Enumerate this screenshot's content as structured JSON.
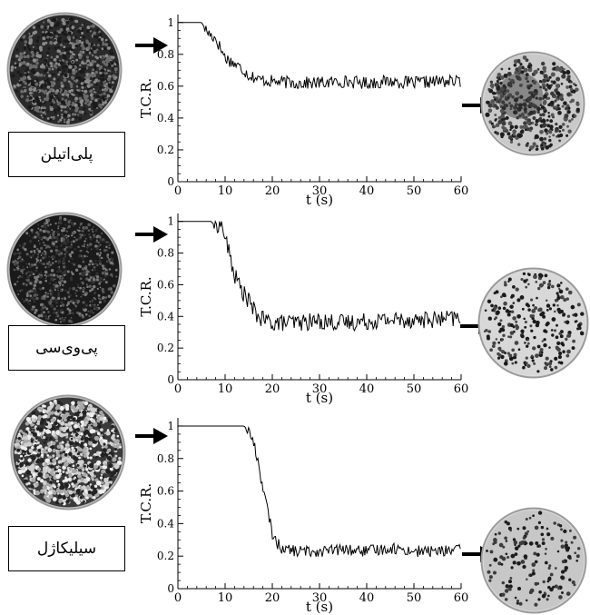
{
  "colors": {
    "line": "#000000",
    "background": "#ffffff",
    "dish_rim": "#8a8a8a"
  },
  "icons": {
    "arrow": "right-arrow-icon"
  },
  "chart_data": [
    {
      "type": "line",
      "material_label": "پلی‌اتیلن",
      "xlabel": "t (s)",
      "ylabel": "T.C.R.",
      "xlim": [
        0,
        60
      ],
      "ylim": [
        0,
        1.05
      ],
      "xticks": [
        "0",
        "10",
        "20",
        "30",
        "40",
        "50",
        "60"
      ],
      "yticks": [
        "0",
        "0.2",
        "0.4",
        "0.6",
        "0.8",
        "1"
      ],
      "series": [
        {
          "values": [
            [
              0,
              1.0
            ],
            [
              3,
              1.0
            ],
            [
              5,
              1.0
            ],
            [
              6,
              0.95
            ],
            [
              7,
              0.92
            ],
            [
              8,
              0.9
            ],
            [
              9,
              0.84
            ],
            [
              10,
              0.78
            ],
            [
              11,
              0.76
            ],
            [
              12,
              0.74
            ],
            [
              13,
              0.72
            ],
            [
              14,
              0.7
            ],
            [
              15,
              0.67
            ],
            [
              16,
              0.66
            ],
            [
              17,
              0.64
            ],
            [
              18,
              0.64
            ],
            [
              20,
              0.63
            ],
            [
              25,
              0.62
            ],
            [
              30,
              0.62
            ],
            [
              35,
              0.63
            ],
            [
              40,
              0.62
            ],
            [
              45,
              0.63
            ],
            [
              50,
              0.62
            ],
            [
              55,
              0.63
            ],
            [
              60,
              0.63
            ]
          ],
          "noise": 0.04
        }
      ]
    },
    {
      "type": "line",
      "material_label": "پی‌وی‌سی",
      "xlabel": "t (s)",
      "ylabel": "T.C.R.",
      "xlim": [
        0,
        60
      ],
      "ylim": [
        0,
        1.05
      ],
      "xticks": [
        "0",
        "10",
        "20",
        "30",
        "40",
        "50",
        "60"
      ],
      "yticks": [
        "0",
        "0.2",
        "0.4",
        "0.6",
        "0.8",
        "1"
      ],
      "series": [
        {
          "values": [
            [
              0,
              1.0
            ],
            [
              7,
              1.0
            ],
            [
              8,
              0.97
            ],
            [
              9,
              1.0
            ],
            [
              10,
              0.9
            ],
            [
              11,
              0.78
            ],
            [
              12,
              0.66
            ],
            [
              13,
              0.6
            ],
            [
              14,
              0.54
            ],
            [
              15,
              0.5
            ],
            [
              16,
              0.44
            ],
            [
              17,
              0.4
            ],
            [
              18,
              0.38
            ],
            [
              20,
              0.36
            ],
            [
              25,
              0.36
            ],
            [
              30,
              0.37
            ],
            [
              35,
              0.36
            ],
            [
              40,
              0.37
            ],
            [
              45,
              0.38
            ],
            [
              50,
              0.38
            ],
            [
              55,
              0.38
            ],
            [
              60,
              0.39
            ]
          ],
          "noise": 0.055
        }
      ]
    },
    {
      "type": "line",
      "material_label": "سیلیکاژل",
      "xlabel": "t (s)",
      "ylabel": "T.C.R.",
      "xlim": [
        0,
        60
      ],
      "ylim": [
        0,
        1.05
      ],
      "xticks": [
        "0",
        "10",
        "20",
        "30",
        "40",
        "50",
        "60"
      ],
      "yticks": [
        "0",
        "0.2",
        "0.4",
        "0.6",
        "0.8",
        "1"
      ],
      "series": [
        {
          "values": [
            [
              0,
              1.0
            ],
            [
              14,
              1.0
            ],
            [
              15,
              0.97
            ],
            [
              16,
              0.9
            ],
            [
              17,
              0.78
            ],
            [
              18,
              0.62
            ],
            [
              19,
              0.48
            ],
            [
              20,
              0.34
            ],
            [
              21,
              0.28
            ],
            [
              22,
              0.25
            ],
            [
              25,
              0.23
            ],
            [
              30,
              0.23
            ],
            [
              35,
              0.24
            ],
            [
              40,
              0.23
            ],
            [
              45,
              0.25
            ],
            [
              50,
              0.23
            ],
            [
              55,
              0.23
            ],
            [
              60,
              0.24
            ]
          ],
          "noise": 0.035
        }
      ]
    }
  ]
}
